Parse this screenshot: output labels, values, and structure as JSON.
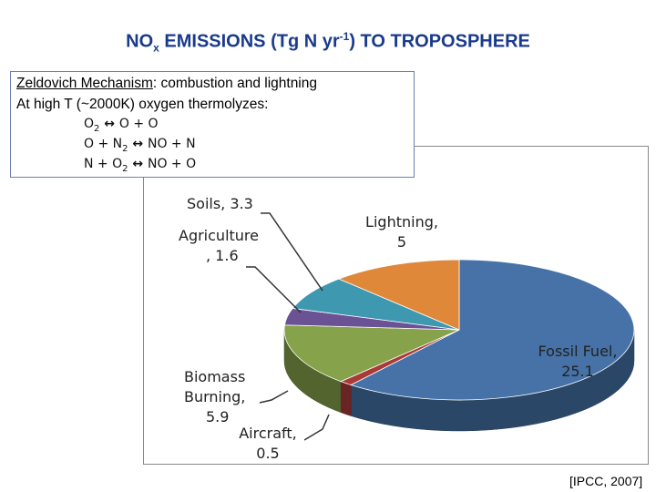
{
  "title": {
    "part1": "NO",
    "sub": "x",
    "part2": " EMISSIONS (Tg N yr",
    "sup": "-1",
    "part3": ") TO TROPOSPHERE"
  },
  "zeldovich": {
    "heading": "Zeldovich Mechanism",
    "heading_rest": ": combustion and lightning",
    "line2": "At high T (~2000K) oxygen thermolyzes:",
    "eq1": {
      "a": "O",
      "a_sub": "2",
      "arrow": " ↔ ",
      "b": "O + O"
    },
    "eq2": {
      "a": "O + N",
      "a_sub": "2",
      "arrow": " ↔ ",
      "b": "NO + N"
    },
    "eq3": {
      "a": "N + O",
      "a_sub": "2",
      "arrow": " ↔ ",
      "b": "NO + O"
    }
  },
  "citation": "[IPCC, 2007]",
  "chart_data": {
    "type": "pie",
    "title": "",
    "slices": [
      {
        "label": "Fossil Fuel",
        "value": 25.1,
        "color": "#4672a8"
      },
      {
        "label": "Aircraft",
        "value": 0.5,
        "color": "#a93a38"
      },
      {
        "label": "Biomass Burning",
        "value": 5.9,
        "color": "#86a24a"
      },
      {
        "label": "Agriculture",
        "value": 1.6,
        "color": "#6a5294"
      },
      {
        "label": "Soils",
        "value": 3.3,
        "color": "#3d98b0"
      },
      {
        "label": "Lightning",
        "value": 5,
        "color": "#e0883a"
      }
    ],
    "labels": {
      "fossil": {
        "l1": "Fossil Fuel,",
        "l2": "25.1"
      },
      "aircraft": {
        "l1": "Aircraft,",
        "l2": "0.5"
      },
      "biomass": {
        "l1": "Biomass",
        "l2": "Burning,",
        "l3": "5.9"
      },
      "agriculture": {
        "l1": "Agriculture",
        "l2": ", 1.6"
      },
      "soils": {
        "l1": "Soils, 3.3"
      },
      "lightning": {
        "l1": "Lightning,",
        "l2": "5"
      }
    }
  }
}
